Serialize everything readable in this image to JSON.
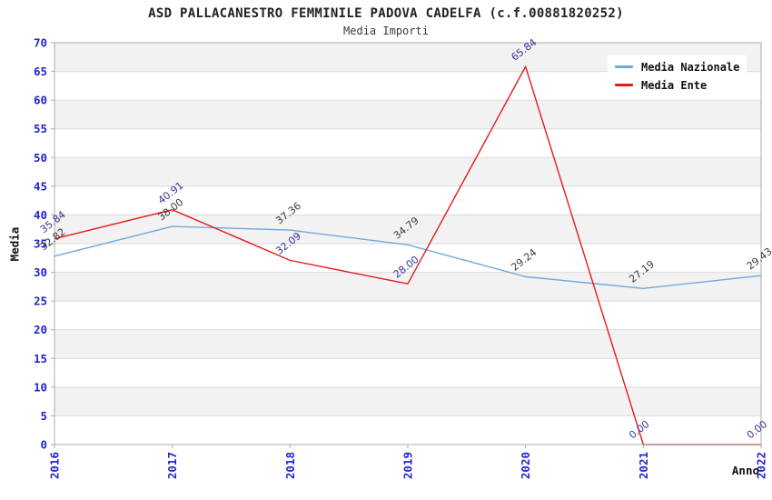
{
  "chart_data": {
    "type": "line",
    "title": "ASD PALLACANESTRO FEMMINILE PADOVA CADELFA (c.f.00881820252)",
    "subtitle": "Media Importi",
    "xlabel": "Anno",
    "ylabel": "Media",
    "categories": [
      "2016",
      "2017",
      "2018",
      "2019",
      "2020",
      "2021",
      "2022"
    ],
    "series": [
      {
        "name": "Media Nazionale",
        "color": "#6FA8DC",
        "label_color": "#3A3A3A",
        "values": [
          32.82,
          38.0,
          37.36,
          34.79,
          29.24,
          27.19,
          29.43
        ]
      },
      {
        "name": "Media Ente",
        "color": "#E61B1B",
        "label_color": "#333399",
        "values": [
          35.84,
          40.91,
          32.09,
          28.0,
          65.84,
          0.0,
          0.0
        ]
      }
    ],
    "ylim": [
      0,
      70
    ],
    "ytick_step": 5,
    "yticks": [
      0,
      5,
      10,
      15,
      20,
      25,
      30,
      35,
      40,
      45,
      50,
      55,
      60,
      65,
      70
    ],
    "grid": "horizontal-bands-alternating",
    "legend_position": "top-right",
    "point_label_rotation_deg": -38,
    "colors": {
      "axis_tick_label": "#2424CC",
      "band_fill": "#F2F2F2",
      "plot_border": "#ABABAB",
      "gridline": "#DBDBDB",
      "legend_background": "#FFFFFF",
      "title_text": "#222222",
      "background": "#FFFFFF"
    }
  }
}
